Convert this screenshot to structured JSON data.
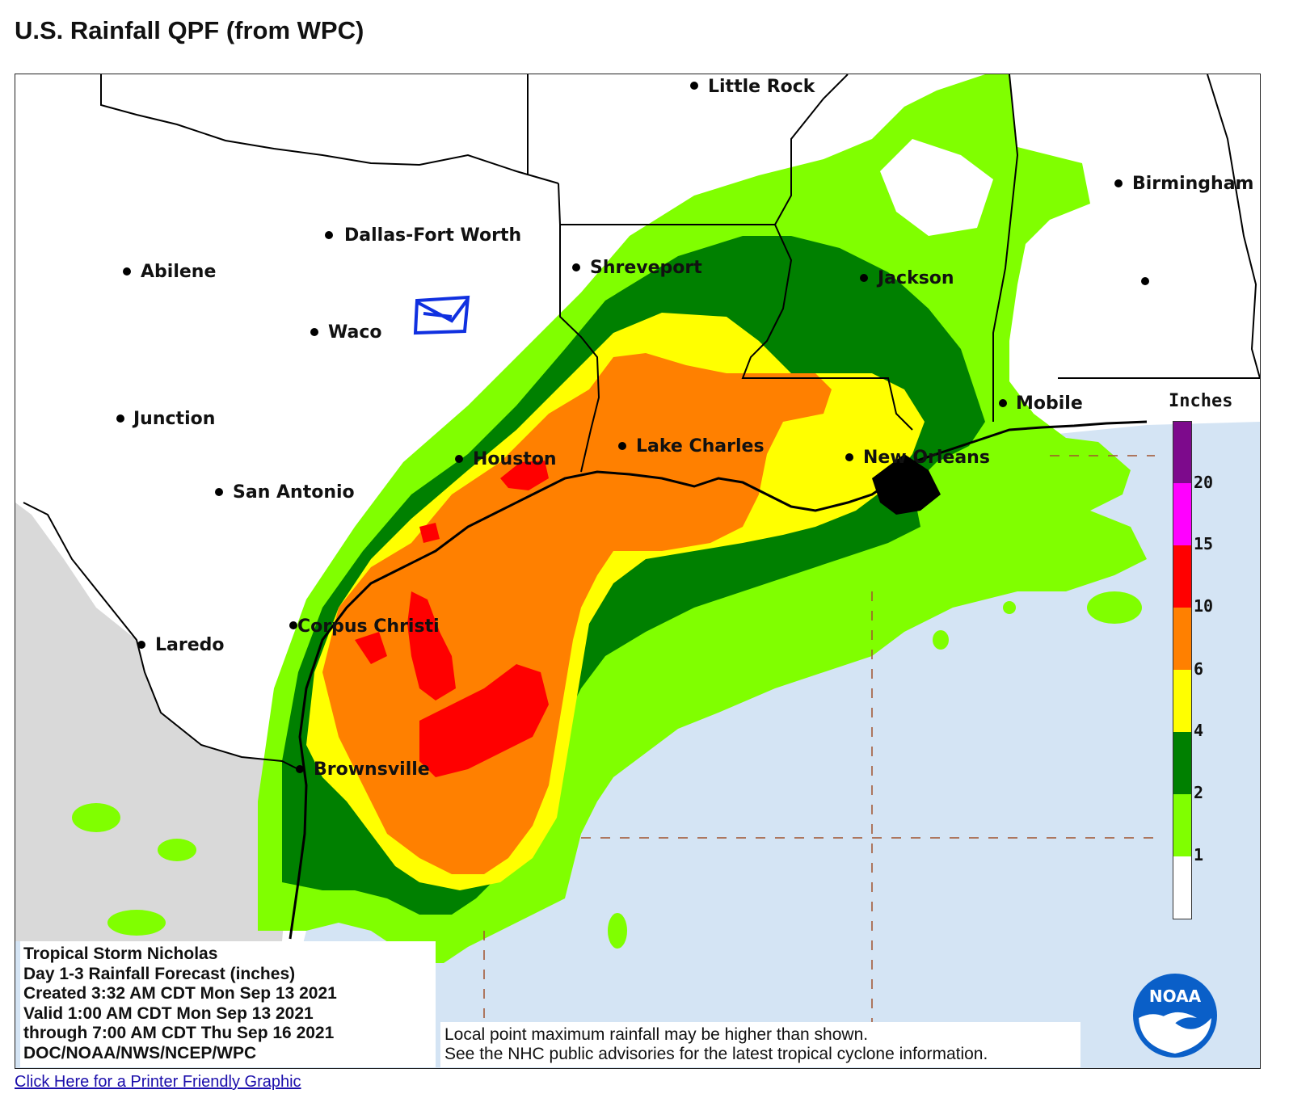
{
  "page": {
    "title": "U.S. Rainfall QPF (from WPC)"
  },
  "cities": [
    {
      "name": "Little Rock"
    },
    {
      "name": "Birmingham"
    },
    {
      "name": "Dallas-Fort Worth"
    },
    {
      "name": "Abilene"
    },
    {
      "name": "Shreveport"
    },
    {
      "name": "Jackson"
    },
    {
      "name": "Waco"
    },
    {
      "name": "Junction"
    },
    {
      "name": "Mobile"
    },
    {
      "name": "Houston"
    },
    {
      "name": "Lake Charles"
    },
    {
      "name": "New Orleans"
    },
    {
      "name": "San Antonio"
    },
    {
      "name": "Corpus Christi"
    },
    {
      "name": "Laredo"
    },
    {
      "name": "Brownsville"
    }
  ],
  "info": {
    "line1": "Tropical Storm Nicholas",
    "line2": "Day 1-3 Rainfall Forecast (inches)",
    "line3": "Created 3:32 AM CDT Mon Sep 13 2021",
    "line4": "Valid 1:00 AM CDT Mon Sep 13 2021",
    "line5": "through 7:00 AM CDT Thu Sep 16 2021",
    "line6": "DOC/NOAA/NWS/NCEP/WPC"
  },
  "disclaimer": {
    "line1": "Local point maximum rainfall may be higher than shown.",
    "line2": "See the NHC public advisories for the latest tropical cyclone information."
  },
  "legend": {
    "title": "Inches",
    "ticks": [
      "20",
      "15",
      "10",
      "6",
      "4",
      "2",
      "1"
    ],
    "colors": [
      "#7d0a8c",
      "#ff00ff",
      "#ff0000",
      "#ff8000",
      "#ffff00",
      "#008000",
      "#80ff00",
      "#ffffff"
    ]
  },
  "colors": {
    "ocean": "#d4e4f4",
    "mexico": "#d9d9d9",
    "land": "#ffffff",
    "r1": "#80ff00",
    "r2": "#008000",
    "r4": "#ffff00",
    "r6": "#ff8000",
    "r10": "#ff0000",
    "boundary": "#000000",
    "annotation": "#1030e0"
  },
  "logo": {
    "text": "NOAA"
  },
  "footer": {
    "link_text": "Click Here for a Printer Friendly Graphic"
  }
}
